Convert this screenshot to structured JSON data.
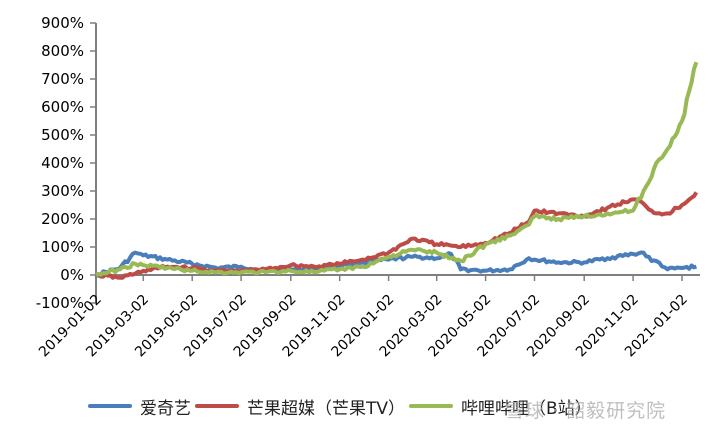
{
  "chart_data": {
    "type": "line",
    "title": "",
    "xlabel": "",
    "ylabel": "",
    "ylim": [
      -100,
      900
    ],
    "yticks": [
      "-100%",
      "0%",
      "100%",
      "200%",
      "300%",
      "400%",
      "500%",
      "600%",
      "700%",
      "800%",
      "900%"
    ],
    "xticks": [
      "2019-01-02",
      "2019-03-02",
      "2019-05-02",
      "2019-07-02",
      "2019-09-02",
      "2019-11-02",
      "2020-01-02",
      "2020-03-02",
      "2020-05-02",
      "2020-07-02",
      "2020-09-02",
      "2020-11-02",
      "2021-01-02"
    ],
    "grid": false,
    "legend_position": "bottom",
    "x": [
      "2019-01-02",
      "2019-02-01",
      "2019-02-20",
      "2019-03-02",
      "2019-04-01",
      "2019-05-02",
      "2019-06-01",
      "2019-07-02",
      "2019-08-01",
      "2019-09-02",
      "2019-10-01",
      "2019-11-02",
      "2019-12-01",
      "2020-01-02",
      "2020-02-01",
      "2020-03-02",
      "2020-03-20",
      "2020-04-01",
      "2020-05-02",
      "2020-06-01",
      "2020-06-25",
      "2020-07-02",
      "2020-08-01",
      "2020-09-02",
      "2020-10-01",
      "2020-11-02",
      "2020-11-15",
      "2020-11-25",
      "2020-12-01",
      "2020-12-15",
      "2021-01-02",
      "2021-01-20"
    ],
    "series": [
      {
        "name": "爱奇艺",
        "color": "#4a7ebb",
        "values": [
          0,
          25,
          80,
          70,
          55,
          40,
          25,
          30,
          15,
          20,
          20,
          35,
          45,
          55,
          65,
          60,
          75,
          20,
          15,
          20,
          60,
          55,
          45,
          45,
          60,
          75,
          80,
          50,
          50,
          20,
          25,
          30
        ]
      },
      {
        "name": "芒果超媒（芒果TV）",
        "color": "#be4b48",
        "values": [
          0,
          -10,
          5,
          15,
          30,
          25,
          15,
          15,
          20,
          35,
          30,
          40,
          55,
          80,
          130,
          110,
          105,
          100,
          115,
          150,
          190,
          230,
          220,
          210,
          240,
          270,
          255,
          230,
          220,
          220,
          250,
          295
        ]
      },
      {
        "name": "哔哩哔哩（B站）",
        "color": "#98b954",
        "values": [
          0,
          20,
          40,
          35,
          25,
          15,
          10,
          10,
          10,
          15,
          10,
          20,
          30,
          65,
          90,
          80,
          60,
          50,
          110,
          140,
          180,
          210,
          200,
          210,
          220,
          230,
          300,
          350,
          400,
          450,
          550,
          760
        ]
      }
    ]
  },
  "legend": {
    "items": [
      {
        "label": "爱奇艺",
        "color": "#4a7ebb"
      },
      {
        "label": "芒果超媒（芒果TV）",
        "color": "#be4b48"
      },
      {
        "label": "哔哩哔哩（B站）",
        "color": "#98b954"
      }
    ]
  },
  "watermark": "雪球 · 韶毅研究院",
  "axis_color": "#7f7f7f"
}
